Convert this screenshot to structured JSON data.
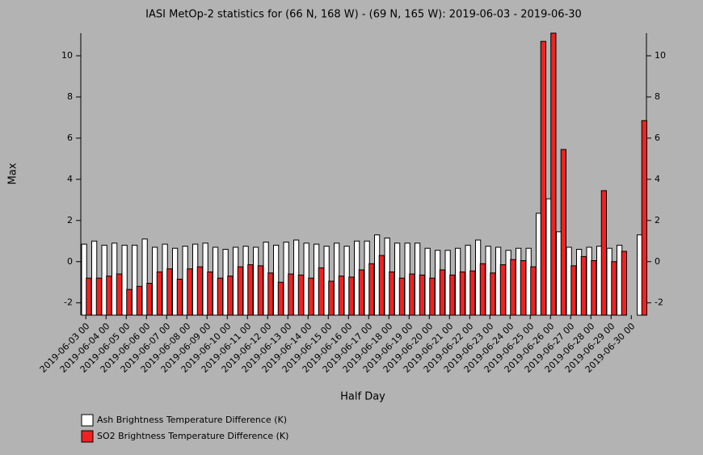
{
  "chart_data": {
    "type": "bar",
    "title": "IASI MetOp-2 statistics for (66 N, 168 W) - (69 N, 165 W): 2019-06-03 - 2019-06-30",
    "x_label": "Half Day",
    "y_label": "Max",
    "categories": [
      "2019-06-03 00",
      null,
      "2019-06-04 00",
      null,
      "2019-06-05 00",
      null,
      "2019-06-06 00",
      null,
      "2019-06-07 00",
      null,
      "2019-06-08 00",
      null,
      "2019-06-09 00",
      null,
      "2019-06-10 00",
      null,
      "2019-06-11 00",
      null,
      "2019-06-12 00",
      null,
      "2019-06-13 00",
      null,
      "2019-06-14 00",
      null,
      "2019-06-15 00",
      null,
      "2019-06-16 00",
      null,
      "2019-06-17 00",
      null,
      "2019-06-18 00",
      null,
      "2019-06-19 00",
      null,
      "2019-06-20 00",
      null,
      "2019-06-21 00",
      null,
      "2019-06-22 00",
      null,
      "2019-06-23 00",
      null,
      "2019-06-24 00",
      null,
      "2019-06-25 00",
      null,
      "2019-06-26 00",
      null,
      "2019-06-27 00",
      null,
      "2019-06-28 00",
      null,
      "2019-06-29 00",
      null,
      "2019-06-30 00",
      null
    ],
    "series": [
      {
        "name": "Ash Brightness Temperature Difference (K)",
        "color": "#ffffff",
        "values": [
          0.85,
          1.0,
          0.8,
          0.9,
          0.8,
          0.8,
          1.1,
          0.7,
          0.85,
          0.65,
          0.75,
          0.85,
          0.9,
          0.7,
          0.6,
          0.7,
          0.75,
          0.7,
          0.95,
          0.8,
          0.95,
          1.05,
          0.9,
          0.85,
          0.75,
          0.9,
          0.75,
          1.0,
          1.0,
          1.3,
          1.15,
          0.9,
          0.9,
          0.9,
          0.65,
          0.55,
          0.55,
          0.65,
          0.8,
          1.05,
          0.75,
          0.7,
          0.55,
          0.65,
          0.65,
          2.35,
          3.05,
          1.45,
          0.7,
          0.6,
          0.7,
          0.75,
          0.65,
          0.8,
          null,
          1.3
        ]
      },
      {
        "name": "SO2 Brightness Temperature Difference (K)",
        "color": "#ee2222",
        "values": [
          -0.8,
          -0.8,
          -0.7,
          -0.6,
          -1.35,
          -1.2,
          -1.05,
          -0.5,
          -0.35,
          -0.85,
          -0.35,
          -0.25,
          -0.5,
          -0.8,
          -0.7,
          -0.25,
          -0.15,
          -0.2,
          -0.55,
          -1.0,
          -0.6,
          -0.65,
          -0.8,
          -0.3,
          -0.95,
          -0.7,
          -0.75,
          -0.4,
          -0.1,
          0.3,
          -0.5,
          -0.8,
          -0.6,
          -0.65,
          -0.8,
          -0.4,
          -0.65,
          -0.5,
          -0.45,
          -0.1,
          -0.55,
          -0.15,
          0.1,
          0.05,
          -0.25,
          10.7,
          11.1,
          5.45,
          -0.2,
          0.25,
          0.05,
          3.45,
          0.0,
          0.5,
          null,
          6.85
        ]
      }
    ],
    "ylim": [
      -2.6,
      11.1
    ],
    "yticks": [
      -2,
      0,
      2,
      4,
      6,
      8,
      10
    ],
    "y2lim": [
      -2.6,
      11.1
    ],
    "y2ticks": [
      -2,
      0,
      2,
      4,
      6,
      8,
      10
    ]
  }
}
